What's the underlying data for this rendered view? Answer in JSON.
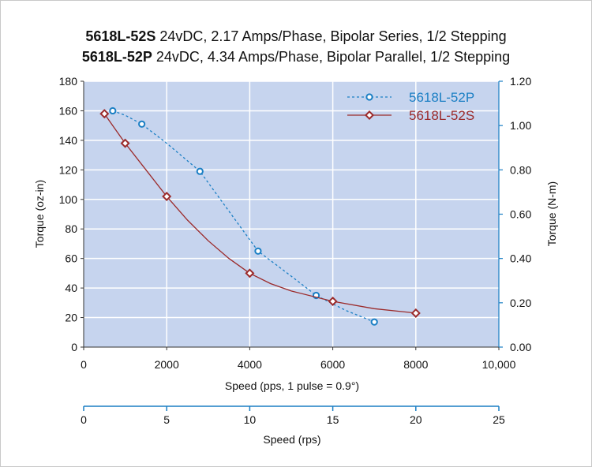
{
  "title": {
    "line1_model": "5618L-52S",
    "line1_rest": " 24vDC, 2.17 Amps/Phase, Bipolar Series, 1/2 Stepping",
    "line2_model": "5618L-52P",
    "line2_rest": " 24vDC, 4.34 Amps/Phase, Bipolar Parallel, 1/2 Stepping"
  },
  "colors": {
    "plot_bg": "#c6d4ee",
    "series_p": "#1b7fc4",
    "series_s": "#9b2a2a",
    "rps_axis": "#1b7fc4",
    "right_axis": "#1b7fc4",
    "grid": "#ffffff"
  },
  "chart_data": {
    "type": "line",
    "xlabel": "Speed (pps, 1 pulse = 0.9°)",
    "ylabel": "Torque (oz-in)",
    "y2label": "Torque (N-m)",
    "xlim": [
      0,
      10000
    ],
    "ylim": [
      0,
      180
    ],
    "y2lim": [
      0,
      1.2
    ],
    "x_ticks": [
      "0",
      "2000",
      "4000",
      "6000",
      "8000",
      "10,000"
    ],
    "y_ticks": [
      "0",
      "20",
      "40",
      "60",
      "80",
      "100",
      "120",
      "140",
      "160",
      "180"
    ],
    "y2_ticks": [
      "0.00",
      "0.20",
      "0.40",
      "0.60",
      "0.80",
      "1.00",
      "1.20"
    ],
    "grid": true,
    "legend_position": "top-right",
    "secondary_x_axis": {
      "label": "Speed (rps)",
      "lim": [
        0,
        25
      ],
      "ticks": [
        "0",
        "5",
        "10",
        "15",
        "20",
        "25"
      ]
    },
    "series": [
      {
        "name": "5618L-52P",
        "style": "dashed",
        "marker": "circle",
        "x": [
          700,
          1400,
          2800,
          4200,
          5600,
          7000
        ],
        "y": [
          160,
          151,
          119,
          65,
          35,
          17
        ],
        "curve_x": [
          700,
          1000,
          1400,
          2000,
          2800,
          3500,
          4200,
          5000,
          5600,
          6300,
          7000
        ],
        "curve_y": [
          160,
          157,
          151,
          138,
          119,
          92,
          65,
          48,
          35,
          25,
          17
        ]
      },
      {
        "name": "5618L-52S",
        "style": "solid",
        "marker": "diamond",
        "x": [
          500,
          1000,
          2000,
          4000,
          6000,
          8000
        ],
        "y": [
          158,
          138,
          102,
          50,
          31,
          23
        ],
        "curve_x": [
          500,
          700,
          1000,
          1500,
          2000,
          2500,
          3000,
          3500,
          4000,
          4500,
          5000,
          6000,
          7000,
          8000
        ],
        "curve_y": [
          158,
          150,
          138,
          120,
          102,
          86,
          72,
          60,
          50,
          43,
          38,
          31,
          26,
          23
        ]
      }
    ]
  }
}
